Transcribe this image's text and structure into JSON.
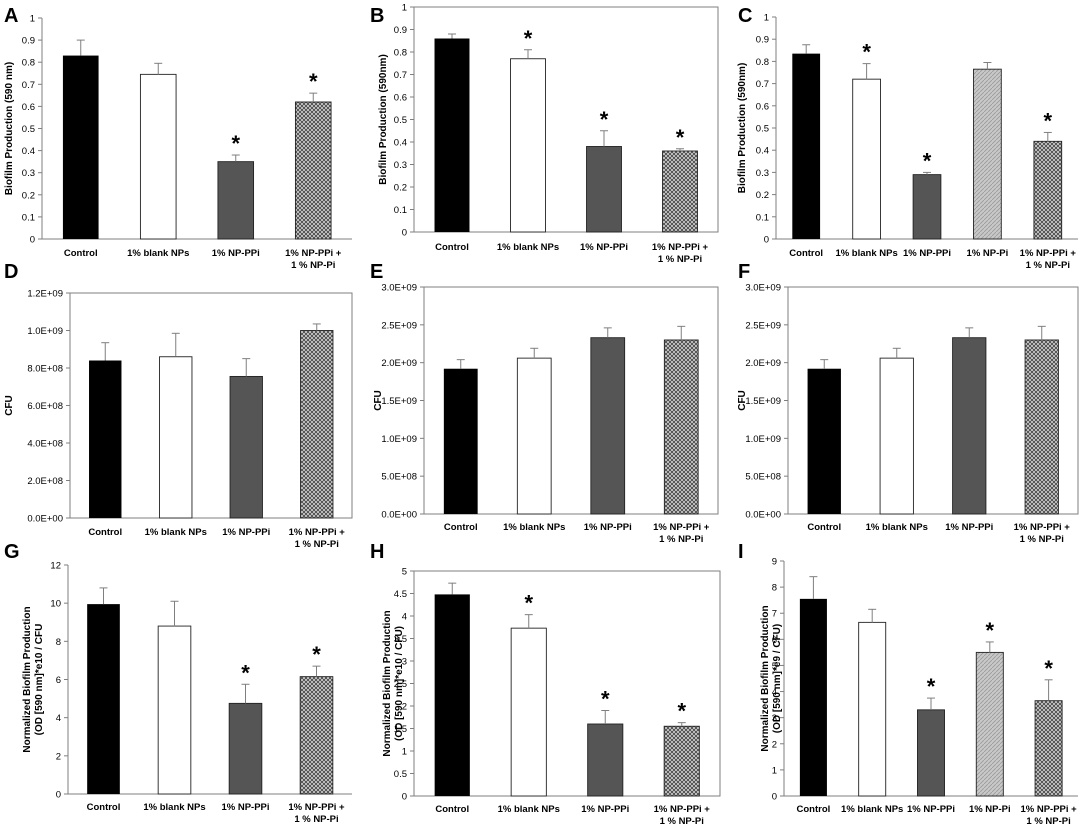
{
  "colors": {
    "control": "#000000",
    "blank": "#ffffff",
    "ppi": "#555555",
    "pi_light": "#bdbdbd",
    "pattern_bg": "#d8d8d8",
    "pattern_fg": "#444444",
    "axis": "#7f7f7f",
    "errorbar": "#7f7f7f"
  },
  "chart_data": [
    {
      "panel": "A",
      "type": "bar",
      "ylabel": "Biofilm Production (590 nm)",
      "categories": [
        "Control",
        "1% blank NPs",
        "1% NP-PPi",
        "1% NP-PPi + 1 % NP-Pi"
      ],
      "values": [
        0.83,
        0.745,
        0.35,
        0.62
      ],
      "errors": [
        0.07,
        0.05,
        0.03,
        0.04
      ],
      "fills": [
        "control",
        "blank",
        "ppi",
        "pattern"
      ],
      "significant": [
        false,
        false,
        true,
        true
      ],
      "ylim": [
        0,
        1
      ],
      "yticks": [
        "0",
        "0.1",
        "0.2",
        "0.3",
        "0.4",
        "0.5",
        "0.6",
        "0.7",
        "0.8",
        "0.9",
        "1"
      ],
      "ytick_values": [
        0,
        0.1,
        0.2,
        0.3,
        0.4,
        0.5,
        0.6,
        0.7,
        0.8,
        0.9,
        1
      ],
      "frame": false
    },
    {
      "panel": "B",
      "type": "bar",
      "ylabel": "Biofilm Production (590nm)",
      "categories": [
        "Control",
        "1% blank NPs",
        "1% NP-PPi",
        "1% NP-PPi + 1 % NP-Pi"
      ],
      "values": [
        0.86,
        0.77,
        0.38,
        0.36
      ],
      "errors": [
        0.02,
        0.04,
        0.07,
        0.01
      ],
      "fills": [
        "control",
        "blank",
        "ppi",
        "pattern"
      ],
      "significant": [
        false,
        true,
        true,
        true
      ],
      "ylim": [
        0,
        1
      ],
      "yticks": [
        "0",
        "0.1",
        "0.2",
        "0.3",
        "0.4",
        "0.5",
        "0.6",
        "0.7",
        "0.8",
        "0.9",
        "1"
      ],
      "ytick_values": [
        0,
        0.1,
        0.2,
        0.3,
        0.4,
        0.5,
        0.6,
        0.7,
        0.8,
        0.9,
        1
      ],
      "frame": true
    },
    {
      "panel": "C",
      "type": "bar",
      "ylabel": "Biofilm Production  (590nm)",
      "categories": [
        "Control",
        "1% blank NPs",
        "1% NP-PPi",
        "1% NP-Pi",
        "1% NP-PPi + 1 % NP-Pi"
      ],
      "values": [
        0.835,
        0.72,
        0.29,
        0.765,
        0.44
      ],
      "errors": [
        0.04,
        0.07,
        0.01,
        0.03,
        0.04
      ],
      "fills": [
        "control",
        "blank",
        "ppi",
        "pi",
        "pattern"
      ],
      "significant": [
        false,
        true,
        true,
        false,
        true
      ],
      "ylim": [
        0,
        1
      ],
      "yticks": [
        "0",
        "0.1",
        "0.2",
        "0.3",
        "0.4",
        "0.5",
        "0.6",
        "0.7",
        "0.8",
        "0.9",
        "1"
      ],
      "ytick_values": [
        0,
        0.1,
        0.2,
        0.3,
        0.4,
        0.5,
        0.6,
        0.7,
        0.8,
        0.9,
        1
      ],
      "frame": false
    },
    {
      "panel": "D",
      "type": "bar",
      "ylabel": "CFU",
      "categories": [
        "Control",
        "1% blank NPs",
        "1% NP-PPi",
        "1% NP-PPi + 1 % NP-Pi"
      ],
      "values": [
        840000000,
        860000000,
        755000000,
        1000000000
      ],
      "errors": [
        95000000,
        125000000,
        95000000,
        35000000
      ],
      "fills": [
        "control",
        "blank",
        "ppi",
        "pattern"
      ],
      "significant": [
        false,
        false,
        false,
        false
      ],
      "ylim": [
        0,
        1200000000
      ],
      "yticks": [
        "0.0E+00",
        "2.0E+08",
        "4.0E+08",
        "6.0E+08",
        "8.0E+08",
        "1.0E+09",
        "1.2E+09"
      ],
      "ytick_values": [
        0,
        200000000,
        400000000,
        600000000,
        800000000,
        1000000000,
        1200000000
      ],
      "frame": true
    },
    {
      "panel": "E",
      "type": "bar",
      "ylabel": "CFU",
      "categories": [
        "Control",
        "1% blank NPs",
        "1% NP-PPi",
        "1% NP-PPi + 1 % NP-Pi"
      ],
      "values": [
        1920000000,
        2060000000,
        2330000000,
        2300000000
      ],
      "errors": [
        120000000,
        130000000,
        130000000,
        180000000
      ],
      "fills": [
        "control",
        "blank",
        "ppi",
        "pattern"
      ],
      "significant": [
        false,
        false,
        false,
        false
      ],
      "ylim": [
        0,
        3000000000
      ],
      "yticks": [
        "0.0E+00",
        "5.0E+08",
        "1.0E+09",
        "1.5E+09",
        "2.0E+09",
        "2.5E+09",
        "3.0E+09"
      ],
      "ytick_values": [
        0,
        500000000,
        1000000000,
        1500000000,
        2000000000,
        2500000000,
        3000000000
      ],
      "frame": true
    },
    {
      "panel": "F",
      "type": "bar",
      "ylabel": "CFU",
      "categories": [
        "Control",
        "1% blank NPs",
        "1% NP-PPi",
        "1% NP-PPi + 1 % NP-Pi"
      ],
      "values": [
        1920000000,
        2060000000,
        2330000000,
        2300000000
      ],
      "errors": [
        120000000,
        130000000,
        130000000,
        180000000
      ],
      "fills": [
        "control",
        "blank",
        "ppi",
        "pattern"
      ],
      "significant": [
        false,
        false,
        false,
        false
      ],
      "ylim": [
        0,
        3000000000
      ],
      "yticks": [
        "0.0E+00",
        "5.0E+08",
        "1.0E+09",
        "1.5E+09",
        "2.0E+09",
        "2.5E+09",
        "3.0E+09"
      ],
      "ytick_values": [
        0,
        500000000,
        1000000000,
        1500000000,
        2000000000,
        2500000000,
        3000000000
      ],
      "frame": true
    },
    {
      "panel": "G",
      "type": "bar",
      "ylabel": [
        "Normalized Biofilm Production",
        "(OD [590 nm]*e10 / CFU"
      ],
      "categories": [
        "Control",
        "1% blank NPs",
        "1% NP-PPi",
        "1% NP-PPi + 1 % NP-Pi"
      ],
      "values": [
        9.95,
        8.8,
        4.75,
        6.15
      ],
      "errors": [
        0.85,
        1.3,
        1.0,
        0.55
      ],
      "fills": [
        "control",
        "blank",
        "ppi",
        "pattern"
      ],
      "significant": [
        false,
        false,
        true,
        true
      ],
      "ylim": [
        0,
        12
      ],
      "yticks": [
        "0",
        "2",
        "4",
        "6",
        "8",
        "10",
        "12"
      ],
      "ytick_values": [
        0,
        2,
        4,
        6,
        8,
        10,
        12
      ],
      "frame": false
    },
    {
      "panel": "H",
      "type": "bar",
      "ylabel": [
        "Normalized Biofilm Production",
        "(OD [590 nm]*e10 / CFU)"
      ],
      "categories": [
        "Control",
        "1% blank NPs",
        "1% NP-PPi",
        "1% NP-PPi + 1 % NP-Pi"
      ],
      "values": [
        4.48,
        3.73,
        1.6,
        1.55
      ],
      "errors": [
        0.25,
        0.3,
        0.3,
        0.08
      ],
      "fills": [
        "control",
        "blank",
        "ppi",
        "pattern"
      ],
      "significant": [
        false,
        true,
        true,
        true
      ],
      "ylim": [
        0,
        5
      ],
      "yticks": [
        "0",
        "0.5",
        "1",
        "1.5",
        "2",
        "2.5",
        "3",
        "3.5",
        "4",
        "4.5",
        "5"
      ],
      "ytick_values": [
        0,
        0.5,
        1,
        1.5,
        2,
        2.5,
        3,
        3.5,
        4,
        4.5,
        5
      ],
      "frame": true
    },
    {
      "panel": "I",
      "type": "bar",
      "ylabel": [
        "Normalized Biofilm Production",
        "(OD [590 nm]*e9 / CFU)"
      ],
      "categories": [
        "Control",
        "1% blank NPs",
        "1% NP-PPi",
        "1% NP-Pi",
        "1% NP-PPi + 1 % NP-Pi"
      ],
      "values": [
        7.55,
        6.65,
        3.3,
        5.5,
        3.65
      ],
      "errors": [
        0.85,
        0.5,
        0.45,
        0.4,
        0.8
      ],
      "fills": [
        "control",
        "blank",
        "ppi",
        "pi",
        "pattern"
      ],
      "significant": [
        false,
        false,
        true,
        true,
        true
      ],
      "ylim": [
        0,
        9
      ],
      "yticks": [
        "0",
        "1",
        "2",
        "3",
        "4",
        "5",
        "6",
        "7",
        "8",
        "9"
      ],
      "ytick_values": [
        0,
        1,
        2,
        3,
        4,
        5,
        6,
        7,
        8,
        9
      ],
      "frame": false
    }
  ],
  "significance_mark": "*"
}
